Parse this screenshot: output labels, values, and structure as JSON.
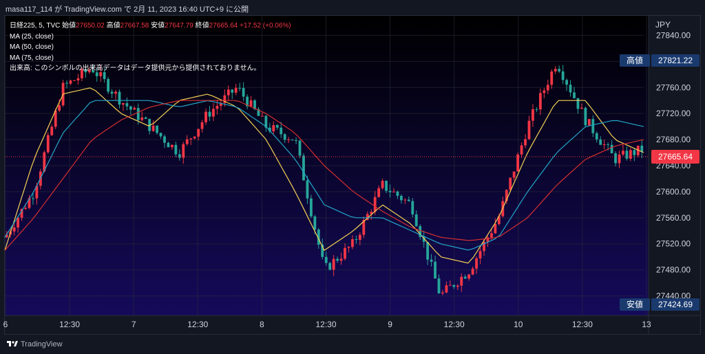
{
  "header": {
    "byline": "masa117_114 が TradingView.com で 2月 11, 2023 16:40 UTC+9 に公開"
  },
  "legend": {
    "symbol": "日経225, 5, TVC",
    "open_label": "始値",
    "open_value": "27650.02",
    "high_label": "高値",
    "high_value": "27667.58",
    "low_label": "安値",
    "low_value": "27647.79",
    "close_label": "終値",
    "close_value": "27665.64",
    "change": "+17.52 (+0.06%)",
    "ma_lines": [
      "MA (25, close)",
      "MA (50, close)",
      "MA (75, close)"
    ],
    "volume_notice": "出来高: このシンボルの出来高データはデータ提供元から提供されておりません。"
  },
  "axis": {
    "currency": "JPY",
    "price_ticks": [
      "27840.00",
      "27800.00",
      "27760.00",
      "27720.00",
      "27680.00",
      "27640.00",
      "27600.00",
      "27560.00",
      "27520.00",
      "27480.00",
      "27440.00"
    ],
    "time_ticks": [
      "6",
      "12:30",
      "7",
      "12:30",
      "8",
      "12:30",
      "9",
      "12:30",
      "10",
      "12:30",
      "13"
    ],
    "high_tag_label": "高値",
    "high_tag_value": "27821.22",
    "low_tag_label": "安値",
    "low_tag_value": "27424.69",
    "last_price": "27665.64"
  },
  "footer": {
    "brand": "TradingView"
  },
  "colors": {
    "up": "#f23645",
    "down": "#26a69a",
    "ma25": "#f7d154",
    "ma50": "#22a7c9",
    "ma75": "#d62f2f",
    "background_top": "#000000",
    "background_bottom": "#140a5a",
    "tag_bg": "#1a3a6e"
  },
  "chart_data": {
    "type": "line",
    "title": "日経225, 5, TVC",
    "ylim": [
      27410,
      27870
    ],
    "x_ticks": [
      "6",
      "12:30",
      "7",
      "12:30",
      "8",
      "12:30",
      "9",
      "12:30",
      "10",
      "12:30",
      "13"
    ],
    "series": [
      {
        "name": "日経225 (close, approx.)",
        "values": [
          27530,
          27600,
          27760,
          27790,
          27740,
          27700,
          27660,
          27720,
          27760,
          27700,
          27680,
          27480,
          27520,
          27610,
          27580,
          27440,
          27480,
          27560,
          27700,
          27800,
          27710,
          27650,
          27665.64
        ]
      },
      {
        "name": "MA (25, close)",
        "values": [
          27510,
          27650,
          27750,
          27760,
          27720,
          27700,
          27740,
          27750,
          27730,
          27680,
          27600,
          27510,
          27540,
          27580,
          27550,
          27500,
          27490,
          27560,
          27660,
          27740,
          27740,
          27680,
          27660
        ]
      },
      {
        "name": "MA (50, close)",
        "values": [
          27530,
          27600,
          27690,
          27740,
          27740,
          27740,
          27730,
          27740,
          27730,
          27700,
          27650,
          27580,
          27560,
          27560,
          27540,
          27520,
          27510,
          27530,
          27600,
          27660,
          27700,
          27710,
          27700
        ]
      },
      {
        "name": "MA (75, close)",
        "values": [
          27510,
          27560,
          27620,
          27680,
          27710,
          27730,
          27740,
          27740,
          27740,
          27720,
          27690,
          27640,
          27600,
          27570,
          27545,
          27530,
          27525,
          27530,
          27560,
          27610,
          27650,
          27670,
          27680
        ]
      }
    ]
  }
}
